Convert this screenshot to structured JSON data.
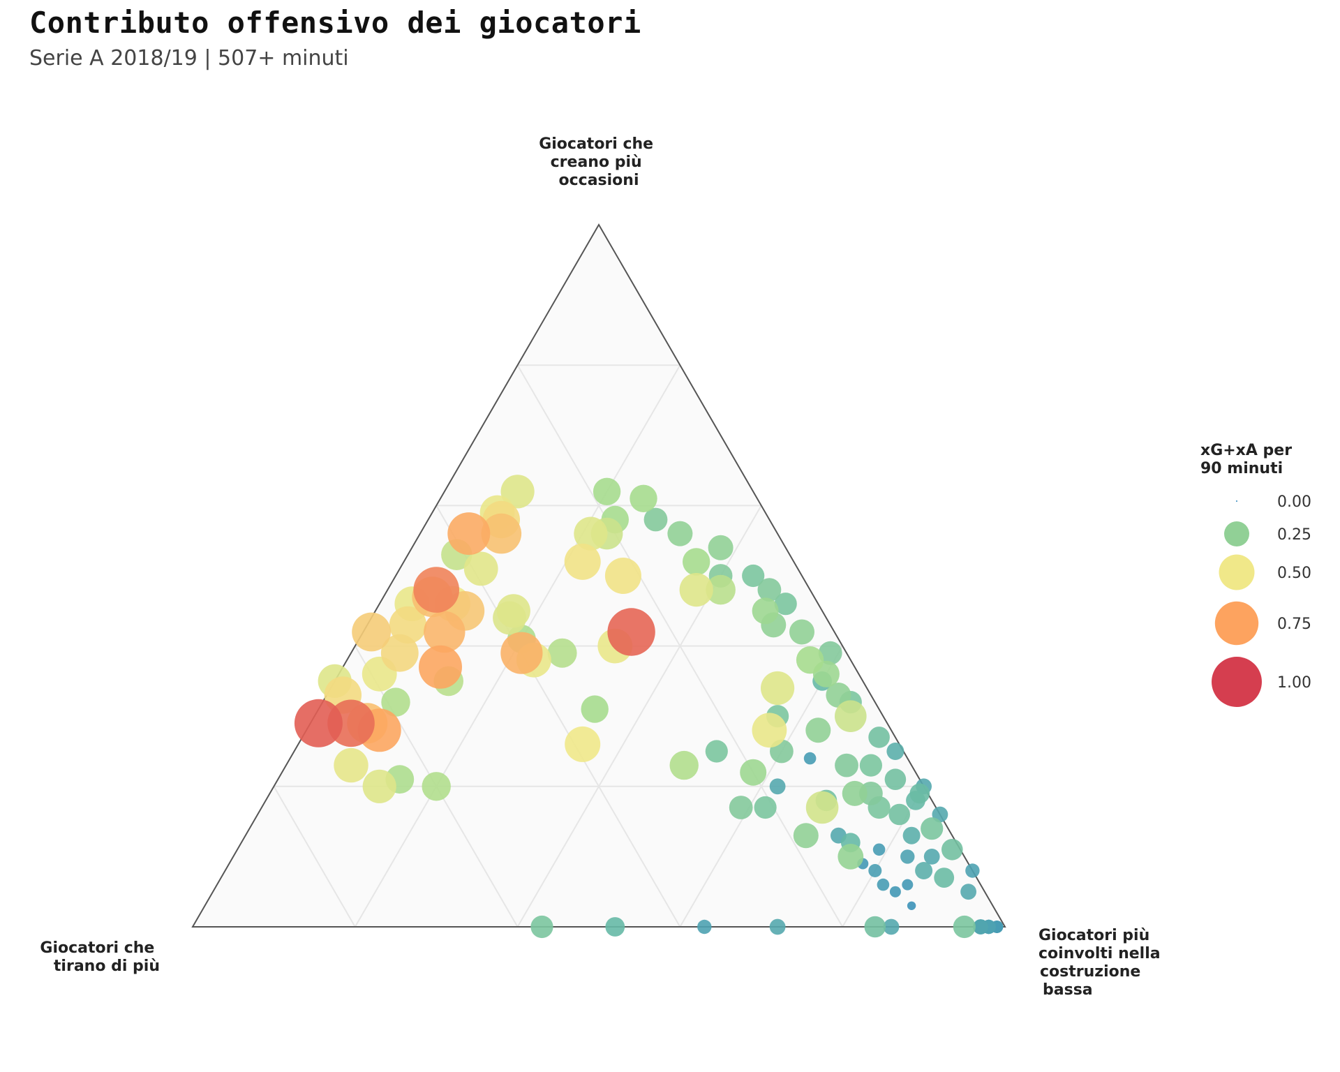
{
  "chart_data": {
    "type": "scatter",
    "subtype": "ternary",
    "title": "Contributo offensivo dei giocatori",
    "subtitle": "Serie A 2018/19 | 507+ minuti",
    "axes": {
      "top": [
        "Giocatori che",
        "creano più",
        "occasioni"
      ],
      "left": [
        "Giocatori che",
        "tirano di più"
      ],
      "right": [
        "Giocatori più",
        "coinvolti nella",
        "costruzione",
        "bassa"
      ]
    },
    "axis_range": [
      0,
      1
    ],
    "gridlines": [
      0.2,
      0.4,
      0.6,
      0.8
    ],
    "grid": true,
    "legend": {
      "title": [
        "xG+xA per",
        "90 minuti"
      ],
      "position": "right",
      "entries": [
        {
          "label": "0.00",
          "value": 0.0
        },
        {
          "label": "0.25",
          "value": 0.25
        },
        {
          "label": "0.50",
          "value": 0.5
        },
        {
          "label": "0.75",
          "value": 0.75
        },
        {
          "label": "1.00",
          "value": 1.0
        }
      ]
    },
    "color_scale": [
      {
        "value": 0.0,
        "color": "#3288bd"
      },
      {
        "value": 0.15,
        "color": "#66b9a6"
      },
      {
        "value": 0.3,
        "color": "#a6dc8e"
      },
      {
        "value": 0.5,
        "color": "#f0e889"
      },
      {
        "value": 0.75,
        "color": "#fda35f"
      },
      {
        "value": 1.0,
        "color": "#d53e4f"
      }
    ],
    "point_fields": [
      "creano",
      "tirano",
      "costruzione",
      "xG+xA_per_90"
    ],
    "points": [
      [
        0.35,
        0.65,
        0.0,
        0.45
      ],
      [
        0.33,
        0.65,
        0.02,
        0.55
      ],
      [
        0.29,
        0.64,
        0.07,
        0.65
      ],
      [
        0.29,
        0.7,
        0.01,
        0.92
      ],
      [
        0.29,
        0.66,
        0.05,
        0.88
      ],
      [
        0.28,
        0.63,
        0.09,
        0.74
      ],
      [
        0.23,
        0.69,
        0.08,
        0.47
      ],
      [
        0.2,
        0.67,
        0.13,
        0.45
      ],
      [
        0.21,
        0.64,
        0.15,
        0.32
      ],
      [
        0.2,
        0.6,
        0.2,
        0.33
      ],
      [
        0.42,
        0.57,
        0.01,
        0.6
      ],
      [
        0.36,
        0.59,
        0.05,
        0.48
      ],
      [
        0.32,
        0.59,
        0.09,
        0.33
      ],
      [
        0.48,
        0.46,
        0.06,
        0.83
      ],
      [
        0.47,
        0.47,
        0.06,
        0.65
      ],
      [
        0.42,
        0.48,
        0.1,
        0.68
      ],
      [
        0.43,
        0.52,
        0.05,
        0.55
      ],
      [
        0.46,
        0.45,
        0.09,
        0.5
      ],
      [
        0.37,
        0.51,
        0.12,
        0.74
      ],
      [
        0.35,
        0.51,
        0.14,
        0.35
      ],
      [
        0.39,
        0.55,
        0.06,
        0.56
      ],
      [
        0.46,
        0.5,
        0.04,
        0.48
      ],
      [
        0.45,
        0.44,
        0.11,
        0.62
      ],
      [
        0.51,
        0.39,
        0.1,
        0.46
      ],
      [
        0.53,
        0.41,
        0.06,
        0.38
      ],
      [
        0.56,
        0.38,
        0.06,
        0.72
      ],
      [
        0.59,
        0.33,
        0.08,
        0.48
      ],
      [
        0.62,
        0.29,
        0.09,
        0.45
      ],
      [
        0.58,
        0.33,
        0.09,
        0.55
      ],
      [
        0.56,
        0.34,
        0.1,
        0.64
      ],
      [
        0.44,
        0.39,
        0.17,
        0.44
      ],
      [
        0.45,
        0.38,
        0.17,
        0.45
      ],
      [
        0.41,
        0.39,
        0.2,
        0.32
      ],
      [
        0.39,
        0.4,
        0.21,
        0.7
      ],
      [
        0.38,
        0.39,
        0.23,
        0.48
      ],
      [
        0.39,
        0.35,
        0.26,
        0.34
      ],
      [
        0.4,
        0.28,
        0.32,
        0.48
      ],
      [
        0.42,
        0.25,
        0.33,
        0.9
      ],
      [
        0.31,
        0.35,
        0.34,
        0.3
      ],
      [
        0.26,
        0.39,
        0.35,
        0.5
      ],
      [
        0.52,
        0.26,
        0.22,
        0.52
      ],
      [
        0.56,
        0.21,
        0.23,
        0.4
      ],
      [
        0.58,
        0.19,
        0.23,
        0.3
      ],
      [
        0.62,
        0.18,
        0.2,
        0.3
      ],
      [
        0.56,
        0.23,
        0.21,
        0.45
      ],
      [
        0.5,
        0.22,
        0.28,
        0.52
      ],
      [
        0.61,
        0.14,
        0.25,
        0.3
      ],
      [
        0.58,
        0.14,
        0.28,
        0.22
      ],
      [
        0.56,
        0.12,
        0.32,
        0.25
      ],
      [
        0.54,
        0.08,
        0.38,
        0.25
      ],
      [
        0.48,
        0.14,
        0.38,
        0.45
      ],
      [
        0.48,
        0.11,
        0.41,
        0.35
      ],
      [
        0.5,
        0.1,
        0.4,
        0.22
      ],
      [
        0.52,
        0.12,
        0.36,
        0.3
      ],
      [
        0.46,
        0.04,
        0.5,
        0.2
      ],
      [
        0.48,
        0.05,
        0.47,
        0.22
      ],
      [
        0.5,
        0.06,
        0.44,
        0.2
      ],
      [
        0.45,
        0.07,
        0.48,
        0.28
      ],
      [
        0.43,
        0.07,
        0.5,
        0.25
      ],
      [
        0.42,
        0.04,
        0.54,
        0.25
      ],
      [
        0.39,
        0.02,
        0.59,
        0.22
      ],
      [
        0.38,
        0.05,
        0.57,
        0.3
      ],
      [
        0.36,
        0.04,
        0.6,
        0.28
      ],
      [
        0.33,
        0.04,
        0.63,
        0.25
      ],
      [
        0.3,
        0.04,
        0.66,
        0.4
      ],
      [
        0.34,
        0.11,
        0.55,
        0.45
      ],
      [
        0.28,
        0.15,
        0.57,
        0.48
      ],
      [
        0.23,
        0.08,
        0.69,
        0.22
      ],
      [
        0.19,
        0.09,
        0.72,
        0.25
      ],
      [
        0.17,
        0.14,
        0.69,
        0.42
      ],
      [
        0.23,
        0.28,
        0.49,
        0.33
      ],
      [
        0.25,
        0.23,
        0.52,
        0.2
      ],
      [
        0.17,
        0.24,
        0.59,
        0.22
      ],
      [
        0.13,
        0.18,
        0.69,
        0.25
      ],
      [
        0.1,
        0.14,
        0.76,
        0.26
      ],
      [
        0.32,
        0.03,
        0.65,
        0.2
      ],
      [
        0.27,
        0.02,
        0.71,
        0.18
      ],
      [
        0.23,
        0.05,
        0.72,
        0.2
      ],
      [
        0.21,
        0.03,
        0.76,
        0.18
      ],
      [
        0.19,
        0.07,
        0.74,
        0.22
      ],
      [
        0.17,
        0.07,
        0.76,
        0.2
      ],
      [
        0.16,
        0.05,
        0.79,
        0.18
      ],
      [
        0.14,
        0.02,
        0.84,
        0.2
      ],
      [
        0.19,
        0.01,
        0.8,
        0.16
      ],
      [
        0.11,
        0.01,
        0.88,
        0.18
      ],
      [
        0.07,
        0.04,
        0.89,
        0.16
      ],
      [
        0.17,
        0.21,
        0.62,
        0.2
      ],
      [
        0.18,
        0.13,
        0.69,
        0.18
      ],
      [
        0.3,
        0.13,
        0.57,
        0.2
      ],
      [
        0.28,
        0.09,
        0.63,
        0.25
      ],
      [
        0.25,
        0.15,
        0.6,
        0.22
      ],
      [
        0.22,
        0.2,
        0.58,
        0.28
      ],
      [
        0.35,
        0.05,
        0.6,
        0.15
      ],
      [
        0.25,
        0.01,
        0.74,
        0.12
      ],
      [
        0.2,
        0.0,
        0.8,
        0.1
      ],
      [
        0.18,
        0.02,
        0.8,
        0.15
      ],
      [
        0.16,
        0.0,
        0.84,
        0.1
      ],
      [
        0.13,
        0.05,
        0.82,
        0.12
      ],
      [
        0.1,
        0.07,
        0.83,
        0.08
      ],
      [
        0.1,
        0.04,
        0.86,
        0.1
      ],
      [
        0.08,
        0.06,
        0.86,
        0.12
      ],
      [
        0.08,
        0.0,
        0.92,
        0.08
      ],
      [
        0.05,
        0.02,
        0.93,
        0.1
      ],
      [
        0.06,
        0.09,
        0.85,
        0.05
      ],
      [
        0.05,
        0.11,
        0.84,
        0.05
      ],
      [
        0.03,
        0.1,
        0.87,
        0.03
      ],
      [
        0.09,
        0.13,
        0.78,
        0.05
      ],
      [
        0.2,
        0.18,
        0.62,
        0.1
      ],
      [
        0.24,
        0.12,
        0.64,
        0.06
      ],
      [
        0.13,
        0.14,
        0.73,
        0.1
      ],
      [
        0.11,
        0.1,
        0.79,
        0.06
      ],
      [
        0.08,
        0.12,
        0.8,
        0.07
      ],
      [
        0.06,
        0.12,
        0.82,
        0.06
      ],
      [
        0.12,
        0.13,
        0.75,
        0.15
      ],
      [
        0.0,
        0.57,
        0.43,
        0.2
      ],
      [
        0.0,
        0.48,
        0.52,
        0.15
      ],
      [
        0.0,
        0.37,
        0.63,
        0.08
      ],
      [
        0.0,
        0.28,
        0.72,
        0.1
      ],
      [
        0.0,
        0.16,
        0.84,
        0.18
      ],
      [
        0.0,
        0.14,
        0.86,
        0.1
      ],
      [
        0.0,
        0.05,
        0.95,
        0.2
      ],
      [
        0.0,
        0.03,
        0.97,
        0.09
      ],
      [
        0.0,
        0.02,
        0.98,
        0.08
      ],
      [
        0.0,
        0.01,
        0.99,
        0.05
      ],
      [
        0.0,
        0.01,
        0.99,
        0.06
      ],
      [
        0.0,
        0.03,
        0.97,
        0.07
      ],
      [
        0.0,
        0.02,
        0.98,
        0.06
      ],
      [
        0.0,
        0.01,
        0.99,
        0.06
      ],
      [
        0.0,
        0.03,
        0.97,
        0.06
      ],
      [
        0.0,
        0.01,
        0.99,
        0.06
      ],
      [
        0.0,
        0.03,
        0.97,
        0.09
      ],
      [
        0.0,
        0.02,
        0.98,
        0.08
      ],
      [
        0.0,
        0.01,
        0.99,
        0.05
      ],
      [
        0.0,
        0.01,
        0.99,
        0.06
      ],
      [
        0.0,
        0.03,
        0.97,
        0.07
      ],
      [
        0.0,
        0.02,
        0.98,
        0.06
      ],
      [
        0.0,
        0.01,
        0.99,
        0.06
      ],
      [
        0.0,
        0.03,
        0.97,
        0.06
      ],
      [
        0.0,
        0.01,
        0.99,
        0.06
      ],
      [
        0.0,
        0.03,
        0.97,
        0.09
      ],
      [
        0.0,
        0.02,
        0.98,
        0.08
      ],
      [
        0.0,
        0.01,
        0.99,
        0.05
      ],
      [
        0.0,
        0.01,
        0.99,
        0.06
      ]
    ]
  }
}
